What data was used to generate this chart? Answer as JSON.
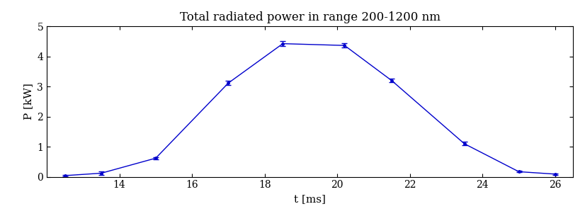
{
  "title": "Total radiated power in range 200-1200 nm",
  "xlabel": "t [ms]",
  "ylabel": "P [kW]",
  "x": [
    12.5,
    13.5,
    15.0,
    17.0,
    18.5,
    20.2,
    21.5,
    23.5,
    25.0,
    26.0
  ],
  "y": [
    0.04,
    0.12,
    0.62,
    3.12,
    4.43,
    4.37,
    3.2,
    1.1,
    0.17,
    0.09
  ],
  "yerr": [
    0.015,
    0.05,
    0.04,
    0.07,
    0.08,
    0.07,
    0.06,
    0.06,
    0.025,
    0.02
  ],
  "line_color": "#0000cc",
  "xlim": [
    12.0,
    26.5
  ],
  "ylim": [
    0,
    5
  ],
  "xticks": [
    14,
    16,
    18,
    20,
    22,
    24,
    26
  ],
  "yticks": [
    0,
    1,
    2,
    3,
    4,
    5
  ],
  "figsize": [
    8.26,
    3.12
  ],
  "dpi": 100,
  "title_fontsize": 12,
  "label_fontsize": 11,
  "tick_fontsize": 10
}
